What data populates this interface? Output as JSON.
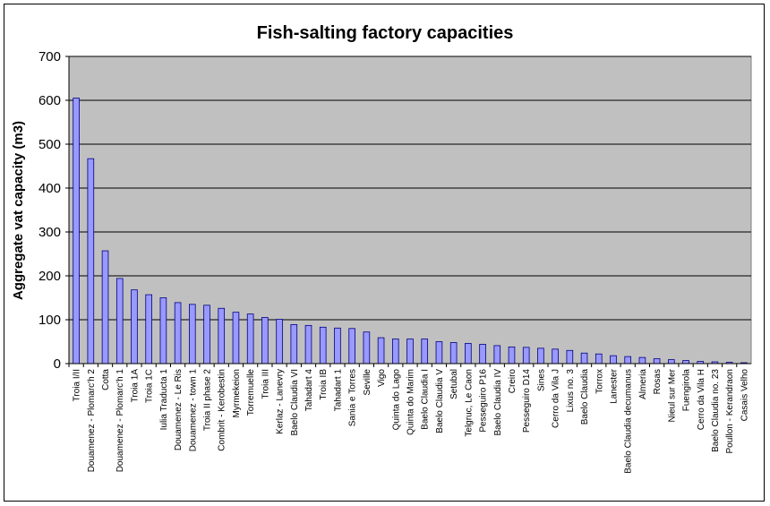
{
  "chart_data": {
    "type": "bar",
    "title": "Fish-salting factory capacities",
    "ylabel": "Aggregate vat capacity (m3)",
    "xlabel": "",
    "ylim": [
      0,
      700
    ],
    "yticks": [
      0,
      100,
      200,
      300,
      400,
      500,
      600,
      700
    ],
    "grid": true,
    "legend": "none",
    "colors": {
      "bar": "#9999ff",
      "bar_border": "#000080",
      "plot_bg": "#c0c0c0",
      "grid": "#000000"
    },
    "categories": [
      "Troia I/II",
      "Douamenez - Plomarc'h 2",
      "Cotta",
      "Douamenez - Plomarc'h 1",
      "Troia 1A",
      "Troia 1C",
      "Iulia Traducta 1",
      "Douamenez - Le Ris",
      "Douamenez - town 1",
      "Troia II phase 2",
      "Combrit - Kerobestin",
      "Myrmekeion",
      "Torremuelle",
      "Troia III",
      "Kerlaz - Lanevry",
      "Baelo Claudia VI",
      "Tahadart 4",
      "Troia IB",
      "Tahadart 1",
      "Sania e Torres",
      "Seville",
      "Vigo",
      "Quinta do Lago",
      "Quinta do Marim",
      "Baelo Claudia I",
      "Baelo Claudia V",
      "Setubal",
      "Telgruc, Le Caon",
      "Pesseguiro P16",
      "Baelo Claudia IV",
      "Creiro",
      "Pesseguiro D14",
      "Sines",
      "Cerro da Vila J",
      "Lixus no. 3",
      "Baelo Claudia",
      "Torrox",
      "Lanester",
      "Baelo Claudia decumanus",
      "Almeria",
      "Rosas",
      "Nieul sur Mer",
      "Fuengirola",
      "Cerro da Vila H",
      "Baelo Claudia no. 23",
      "Poullon - Kerandraon",
      "Casais Velho"
    ],
    "values": [
      605,
      467,
      257,
      194,
      168,
      157,
      150,
      139,
      135,
      133,
      126,
      117,
      113,
      105,
      101,
      89,
      87,
      83,
      81,
      80,
      72,
      59,
      56,
      56,
      56,
      50,
      48,
      46,
      44,
      41,
      38,
      37,
      35,
      33,
      30,
      24,
      22,
      18,
      16,
      14,
      11,
      9,
      7,
      5,
      4,
      3,
      2
    ]
  }
}
